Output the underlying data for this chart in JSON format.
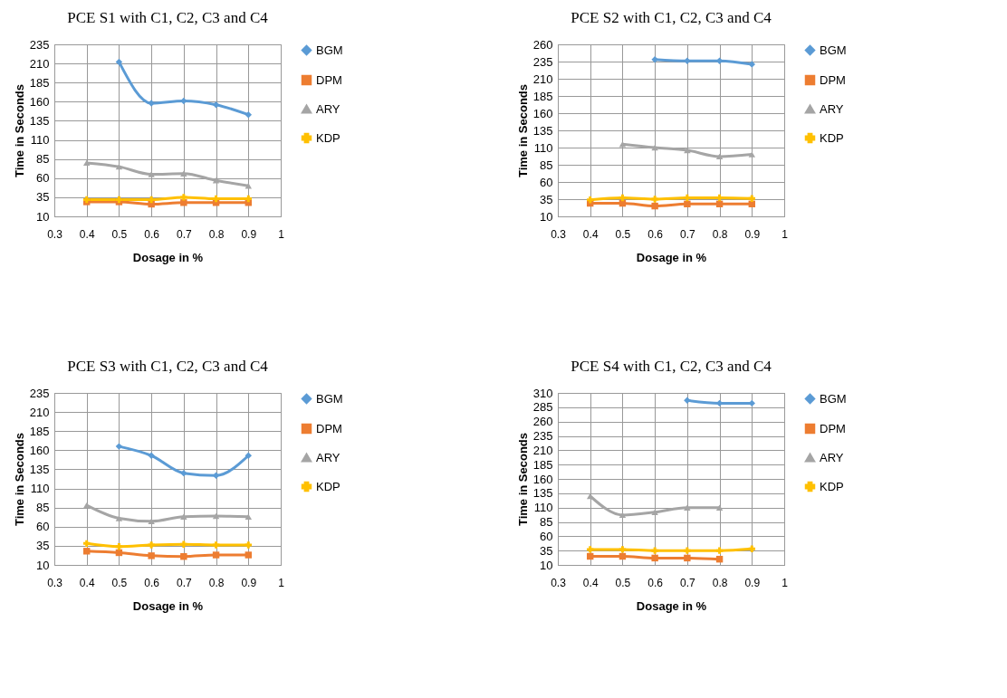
{
  "chart_data": [
    {
      "type": "line",
      "title": "PCE S1 with C1, C2, C3 and C4",
      "xlabel": "Dosage in %",
      "ylabel": "Time in Seconds",
      "x": [
        0.4,
        0.5,
        0.6,
        0.7,
        0.8,
        0.9
      ],
      "xlim": [
        0.3,
        1
      ],
      "xticks": [
        0.3,
        0.4,
        0.5,
        0.6,
        0.7,
        0.8,
        0.9,
        1
      ],
      "ylim": [
        10,
        235
      ],
      "yticks": [
        10,
        35,
        60,
        85,
        110,
        135,
        160,
        185,
        210,
        235
      ],
      "grid": true,
      "legend": "right",
      "series": [
        {
          "name": "BGM",
          "color": "#5b9bd5",
          "marker": "diamond",
          "values": [
            null,
            212,
            158,
            161,
            156,
            143
          ]
        },
        {
          "name": "DPM",
          "color": "#ed7d31",
          "marker": "square",
          "values": [
            29,
            29,
            26,
            28,
            28,
            28
          ]
        },
        {
          "name": "ARY",
          "color": "#a5a5a5",
          "marker": "triangle",
          "values": [
            80,
            75,
            65,
            66,
            57,
            50
          ]
        },
        {
          "name": "KDP",
          "color": "#ffc000",
          "marker": "cross",
          "values": [
            32,
            32,
            32,
            35,
            33,
            33
          ]
        }
      ]
    },
    {
      "type": "line",
      "title": "PCE S2 with C1, C2, C3 and C4",
      "xlabel": "Dosage in %",
      "ylabel": "Time in Seconds",
      "x": [
        0.4,
        0.5,
        0.6,
        0.7,
        0.8,
        0.9
      ],
      "xlim": [
        0.3,
        1
      ],
      "xticks": [
        0.3,
        0.4,
        0.5,
        0.6,
        0.7,
        0.8,
        0.9,
        1
      ],
      "ylim": [
        10,
        260
      ],
      "yticks": [
        10,
        35,
        60,
        85,
        110,
        135,
        160,
        185,
        210,
        235,
        260
      ],
      "grid": true,
      "legend": "right",
      "series": [
        {
          "name": "BGM",
          "color": "#5b9bd5",
          "marker": "diamond",
          "values": [
            null,
            null,
            238,
            236,
            236,
            231
          ]
        },
        {
          "name": "DPM",
          "color": "#ed7d31",
          "marker": "square",
          "values": [
            29,
            29,
            25,
            28,
            28,
            28
          ]
        },
        {
          "name": "ARY",
          "color": "#a5a5a5",
          "marker": "triangle",
          "values": [
            null,
            115,
            110,
            106,
            97,
            100
          ]
        },
        {
          "name": "KDP",
          "color": "#ffc000",
          "marker": "cross",
          "values": [
            34,
            37,
            35,
            37,
            37,
            36
          ]
        }
      ]
    },
    {
      "type": "line",
      "title": "PCE S3 with C1, C2, C3 and C4",
      "xlabel": "Dosage in %",
      "ylabel": "Time in Seconds",
      "x": [
        0.4,
        0.5,
        0.6,
        0.7,
        0.8,
        0.9
      ],
      "xlim": [
        0.3,
        1
      ],
      "xticks": [
        0.3,
        0.4,
        0.5,
        0.6,
        0.7,
        0.8,
        0.9,
        1
      ],
      "ylim": [
        10,
        235
      ],
      "yticks": [
        10,
        35,
        60,
        85,
        110,
        135,
        160,
        185,
        210,
        235
      ],
      "grid": true,
      "legend": "right",
      "series": [
        {
          "name": "BGM",
          "color": "#5b9bd5",
          "marker": "diamond",
          "values": [
            null,
            165,
            153,
            130,
            127,
            153
          ]
        },
        {
          "name": "DPM",
          "color": "#ed7d31",
          "marker": "square",
          "values": [
            28,
            26,
            22,
            21,
            23,
            23
          ]
        },
        {
          "name": "ARY",
          "color": "#a5a5a5",
          "marker": "triangle",
          "values": [
            88,
            71,
            67,
            73,
            74,
            73
          ]
        },
        {
          "name": "KDP",
          "color": "#ffc000",
          "marker": "cross",
          "values": [
            38,
            34,
            36,
            37,
            36,
            36
          ]
        }
      ]
    },
    {
      "type": "line",
      "title": "PCE S4 with C1, C2, C3 and C4",
      "xlabel": "Dosage in %",
      "ylabel": "Time in Seconds",
      "x": [
        0.4,
        0.5,
        0.6,
        0.7,
        0.8,
        0.9
      ],
      "xlim": [
        0.3,
        1
      ],
      "xticks": [
        0.3,
        0.4,
        0.5,
        0.6,
        0.7,
        0.8,
        0.9,
        1
      ],
      "ylim": [
        10,
        310
      ],
      "yticks": [
        10,
        35,
        60,
        85,
        110,
        135,
        160,
        185,
        210,
        235,
        260,
        285,
        310
      ],
      "grid": true,
      "legend": "right",
      "series": [
        {
          "name": "BGM",
          "color": "#5b9bd5",
          "marker": "diamond",
          "values": [
            null,
            null,
            null,
            297,
            292,
            292
          ]
        },
        {
          "name": "DPM",
          "color": "#ed7d31",
          "marker": "square",
          "values": [
            25,
            25,
            22,
            22,
            20,
            null
          ]
        },
        {
          "name": "ARY",
          "color": "#a5a5a5",
          "marker": "triangle",
          "values": [
            130,
            97,
            102,
            110,
            110,
            null
          ]
        },
        {
          "name": "KDP",
          "color": "#ffc000",
          "marker": "cross",
          "values": [
            37,
            37,
            35,
            35,
            35,
            38
          ]
        }
      ]
    }
  ]
}
